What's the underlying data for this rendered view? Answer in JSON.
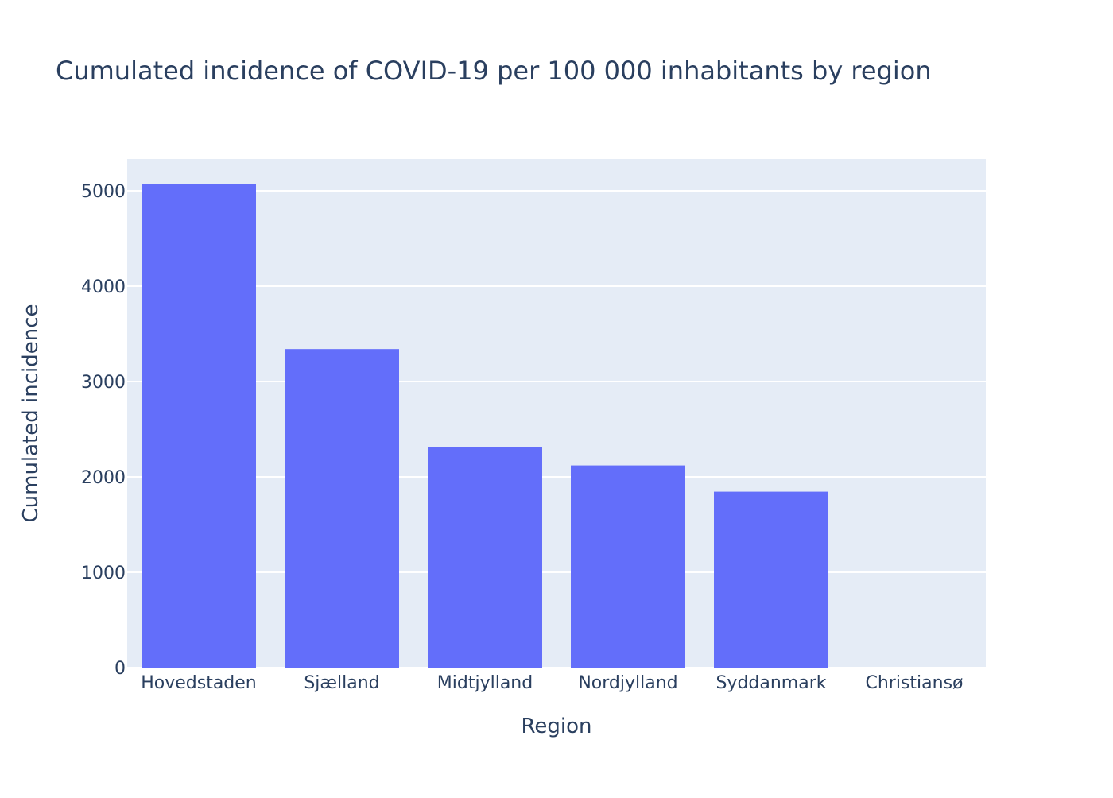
{
  "chart_data": {
    "type": "bar",
    "title": "Cumulated incidence of COVID-19 per 100 000 inhabitants by region",
    "xlabel": "Region",
    "ylabel": "Cumulated incidence",
    "categories": [
      "Hovedstaden",
      "Sjælland",
      "Midtjylland",
      "Nordjylland",
      "Syddanmark",
      "Christiansø"
    ],
    "values": [
      5070,
      3340,
      2310,
      2120,
      1845,
      0
    ],
    "ylim": [
      0,
      5333
    ],
    "yticks": [
      0,
      1000,
      2000,
      3000,
      4000,
      5000
    ],
    "grid": true,
    "legend": "none",
    "colors": {
      "bar": "#636efa",
      "plot_background": "#e5ecf6",
      "grid": "#ffffff",
      "text": "#2a3f5f"
    }
  }
}
